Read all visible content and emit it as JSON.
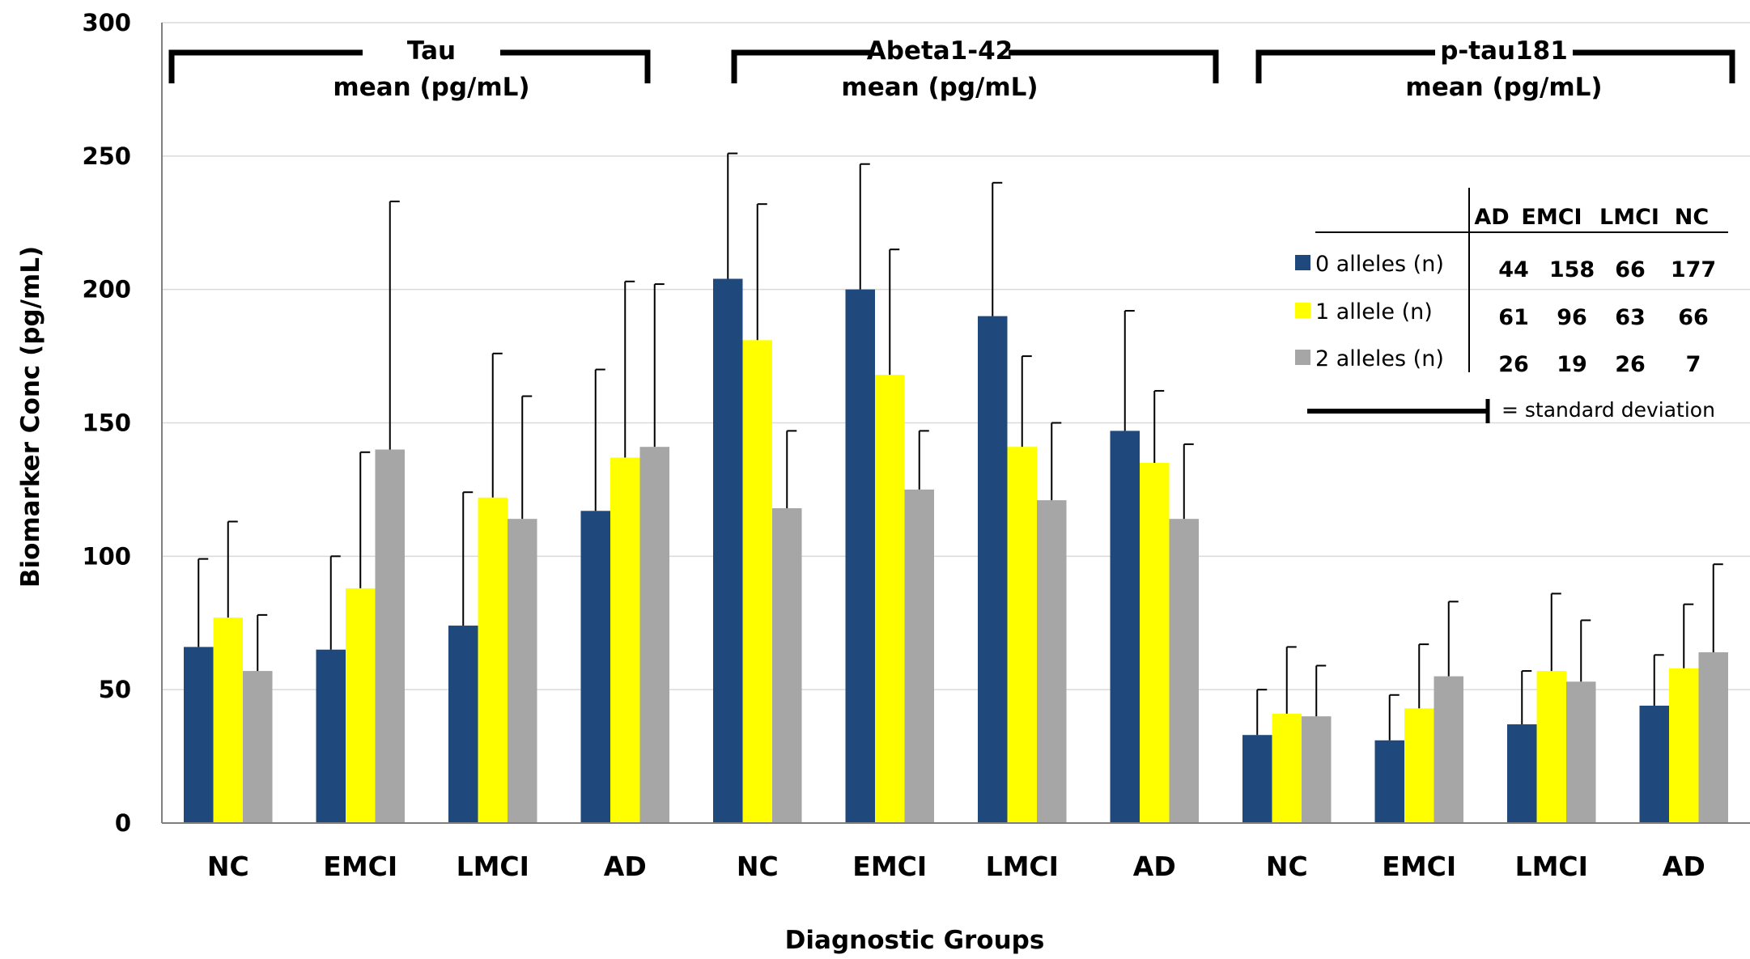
{
  "chart_data": {
    "type": "bar",
    "title": "",
    "xlabel": "Diagnostic Groups",
    "ylabel": "Biomarker Conc (pg/mL)",
    "ylim": [
      0,
      300
    ],
    "yticks": [
      0,
      50,
      100,
      150,
      200,
      250,
      300
    ],
    "grid": true,
    "groups": [
      {
        "line1": "Tau",
        "line2": "mean (pg/mL)"
      },
      {
        "line1": "Abeta1-42",
        "line2": "mean (pg/mL)"
      },
      {
        "line1": "p-tau181",
        "line2": "mean (pg/mL)"
      }
    ],
    "categories": [
      "NC",
      "EMCI",
      "LMCI",
      "AD",
      "NC",
      "EMCI",
      "LMCI",
      "AD",
      "NC",
      "EMCI",
      "LMCI",
      "AD"
    ],
    "series": [
      {
        "name": "0 alleles (n)",
        "color": "#1f497d",
        "values": [
          66,
          65,
          74,
          117,
          204,
          200,
          190,
          147,
          33,
          31,
          37,
          44
        ],
        "sd_upper": [
          99,
          100,
          124,
          170,
          251,
          247,
          240,
          192,
          50,
          48,
          57,
          63
        ]
      },
      {
        "name": "1 allele (n)",
        "color": "#ffff00",
        "values": [
          77,
          88,
          122,
          137,
          181,
          168,
          141,
          135,
          41,
          43,
          57,
          58
        ],
        "sd_upper": [
          113,
          139,
          176,
          203,
          232,
          215,
          175,
          162,
          66,
          67,
          86,
          82
        ]
      },
      {
        "name": "2 alleles (n)",
        "color": "#a6a6a6",
        "values": [
          57,
          140,
          114,
          141,
          118,
          125,
          121,
          114,
          40,
          55,
          53,
          64
        ],
        "sd_upper": [
          78,
          233,
          160,
          202,
          147,
          147,
          150,
          142,
          59,
          83,
          76,
          97
        ]
      }
    ],
    "legend": {
      "placement": "right",
      "col_headers": [
        "AD",
        "EMCI",
        "LMCI",
        "NC"
      ],
      "rows": [
        {
          "label": "0 alleles (n)",
          "counts": [
            "44",
            "158",
            "66",
            "177"
          ]
        },
        {
          "label": "1 allele (n)",
          "counts": [
            "61",
            "96",
            "63",
            "66"
          ]
        },
        {
          "label": "2 alleles (n)",
          "counts": [
            "26",
            "19",
            "26",
            "7"
          ]
        }
      ],
      "sd_note": "= standard deviation"
    }
  }
}
